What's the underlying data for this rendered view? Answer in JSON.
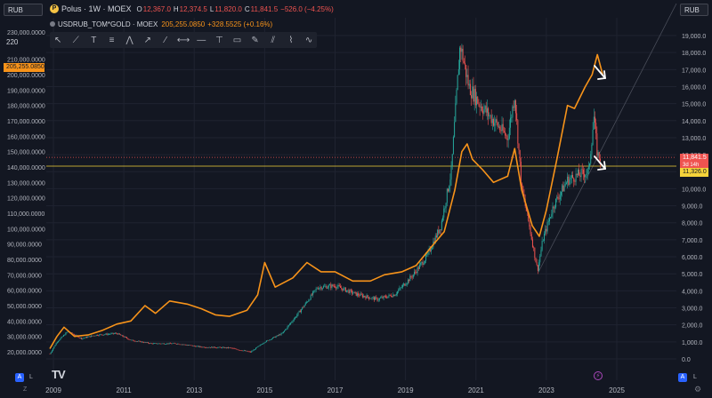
{
  "top_left_currency": "RUB",
  "top_right_currency": "RUB",
  "legend": {
    "symbol_icon": "P",
    "main_title": "Polus · 1W · MOEX",
    "open": "12,367.0",
    "high": "12,374.5",
    "low": "11,820.0",
    "close": "11,841.5",
    "change": "−526.0 (−4.25%)",
    "second_title": "USDRUB_TOM*GOLD · MOEX",
    "second_value": "205,255.0850",
    "second_change": "+328.5525 (+0.16%)"
  },
  "toolbar_icons": [
    "cursor-icon",
    "trend-line-icon",
    "text-icon",
    "fib-icon",
    "pattern-icon",
    "ray-icon",
    "line-icon",
    "extended-line-icon",
    "horizontal-line-icon",
    "vertical-line-icon",
    "rectangle-icon",
    "brush-icon",
    "parallel-channel-icon",
    "regression-icon",
    "zigzag-icon"
  ],
  "left_top_label": "220",
  "badges": {
    "orange_price": "205,255.0850",
    "red_price": "11,841.5",
    "red_countdown": "3d 14h",
    "yellow_price": "11,326.0"
  },
  "logo_text": "TV",
  "bottom_buttons": {
    "a": "A",
    "l": "L"
  },
  "zoom_label": "Z",
  "colors": {
    "background": "#131722",
    "orange": "#f7931a",
    "up": "#26a69a",
    "down": "#ef5350",
    "yellow": "#f5d33a",
    "grid": "#1f2330"
  },
  "chart_data": {
    "type": "line",
    "x_ticks": [
      "2009",
      "2011",
      "2013",
      "2015",
      "2017",
      "2019",
      "2021",
      "2023",
      "2025"
    ],
    "left_axis": {
      "ticks": [
        "230,000.0000",
        "210,000.0000",
        "200,000.0000",
        "190,000.0000",
        "180,000.0000",
        "170,000.0000",
        "160,000.0000",
        "150,000.0000",
        "140,000.0000",
        "130,000.0000",
        "120,000.0000",
        "110,000.0000",
        "100,000.0000",
        "90,000.0000",
        "80,000.0000",
        "70,000.0000",
        "60,000.0000",
        "50,000.0000",
        "40,000.0000",
        "30,000.0000",
        "20,000.0000"
      ],
      "values": [
        230000,
        210000,
        200000,
        190000,
        180000,
        170000,
        160000,
        150000,
        140000,
        130000,
        120000,
        110000,
        100000,
        90000,
        80000,
        70000,
        60000,
        50000,
        40000,
        30000,
        20000
      ]
    },
    "right_axis": {
      "ticks": [
        "19,000.0",
        "18,000.0",
        "17,000.0",
        "16,000.0",
        "15,000.0",
        "14,000.0",
        "13,000.0",
        "12,000.0",
        "11,000.0",
        "10,000.0",
        "9,000.0",
        "8,000.0",
        "7,000.0",
        "6,000.0",
        "5,000.0",
        "4,000.0",
        "3,000.0",
        "2,000.0",
        "1,000.0",
        "0.0"
      ],
      "values": [
        19000,
        18000,
        17000,
        16000,
        15000,
        14000,
        13000,
        12000,
        11000,
        10000,
        9000,
        8000,
        7000,
        6000,
        5000,
        4000,
        3000,
        2000,
        1000,
        0
      ]
    },
    "series": [
      {
        "color": "#f7931a",
        "axis": "left",
        "points": [
          [
            2008.9,
            22000
          ],
          [
            2009.1,
            30000
          ],
          [
            2009.3,
            36000
          ],
          [
            2009.6,
            30000
          ],
          [
            2010,
            31000
          ],
          [
            2010.4,
            34000
          ],
          [
            2010.8,
            38000
          ],
          [
            2011.2,
            40000
          ],
          [
            2011.6,
            50000
          ],
          [
            2011.9,
            45000
          ],
          [
            2012.3,
            53000
          ],
          [
            2012.8,
            51000
          ],
          [
            2013.2,
            48000
          ],
          [
            2013.6,
            44000
          ],
          [
            2014,
            43000
          ],
          [
            2014.5,
            47000
          ],
          [
            2014.8,
            57000
          ],
          [
            2015,
            78000
          ],
          [
            2015.3,
            62000
          ],
          [
            2015.8,
            68000
          ],
          [
            2016.2,
            78000
          ],
          [
            2016.6,
            72000
          ],
          [
            2017,
            72000
          ],
          [
            2017.5,
            66000
          ],
          [
            2018,
            66000
          ],
          [
            2018.4,
            70000
          ],
          [
            2018.9,
            72000
          ],
          [
            2019.3,
            76000
          ],
          [
            2019.8,
            90000
          ],
          [
            2020.1,
            98000
          ],
          [
            2020.4,
            125000
          ],
          [
            2020.6,
            150000
          ],
          [
            2020.75,
            155000
          ],
          [
            2020.9,
            145000
          ],
          [
            2021.2,
            138000
          ],
          [
            2021.5,
            130000
          ],
          [
            2021.9,
            134000
          ],
          [
            2022.1,
            152000
          ],
          [
            2022.3,
            125000
          ],
          [
            2022.6,
            102000
          ],
          [
            2022.8,
            95000
          ],
          [
            2023,
            112000
          ],
          [
            2023.3,
            145000
          ],
          [
            2023.6,
            180000
          ],
          [
            2023.8,
            178000
          ],
          [
            2024.1,
            192000
          ],
          [
            2024.3,
            200000
          ],
          [
            2024.45,
            213000
          ],
          [
            2024.6,
            200000
          ]
        ]
      },
      {
        "color": "#26a69a",
        "axis": "right",
        "points": [
          [
            2008.9,
            300
          ],
          [
            2009.1,
            1000
          ],
          [
            2009.4,
            1600
          ],
          [
            2009.8,
            1200
          ],
          [
            2010.2,
            1400
          ],
          [
            2010.8,
            1500
          ],
          [
            2011.2,
            1100
          ],
          [
            2011.8,
            900
          ],
          [
            2012.5,
            900
          ],
          [
            2013.2,
            700
          ],
          [
            2014,
            650
          ],
          [
            2014.6,
            400
          ],
          [
            2015,
            1000
          ],
          [
            2015.5,
            1500
          ],
          [
            2016,
            2800
          ],
          [
            2016.5,
            4200
          ],
          [
            2017,
            4300
          ],
          [
            2017.6,
            3800
          ],
          [
            2018.2,
            3500
          ],
          [
            2018.7,
            3800
          ],
          [
            2019.2,
            4900
          ],
          [
            2019.6,
            6000
          ],
          [
            2020,
            7800
          ],
          [
            2020.3,
            11000
          ],
          [
            2020.55,
            18500
          ],
          [
            2020.8,
            16000
          ],
          [
            2021.1,
            15000
          ],
          [
            2021.5,
            14000
          ],
          [
            2021.9,
            13000
          ],
          [
            2022.1,
            15500
          ],
          [
            2022.3,
            10000
          ],
          [
            2022.5,
            8000
          ],
          [
            2022.75,
            5200
          ],
          [
            2022.9,
            7000
          ],
          [
            2023.2,
            9000
          ],
          [
            2023.6,
            10500
          ],
          [
            2023.9,
            10800
          ],
          [
            2024.2,
            11000
          ],
          [
            2024.35,
            14200
          ],
          [
            2024.45,
            12000
          ],
          [
            2024.55,
            11800
          ]
        ]
      }
    ],
    "reference_lines": [
      {
        "color": "#ef5350",
        "style": "dotted",
        "axis": "right",
        "value": 11841.5
      },
      {
        "color": "#f5d33a",
        "style": "solid",
        "axis": "right",
        "value": 11326.0
      }
    ]
  }
}
